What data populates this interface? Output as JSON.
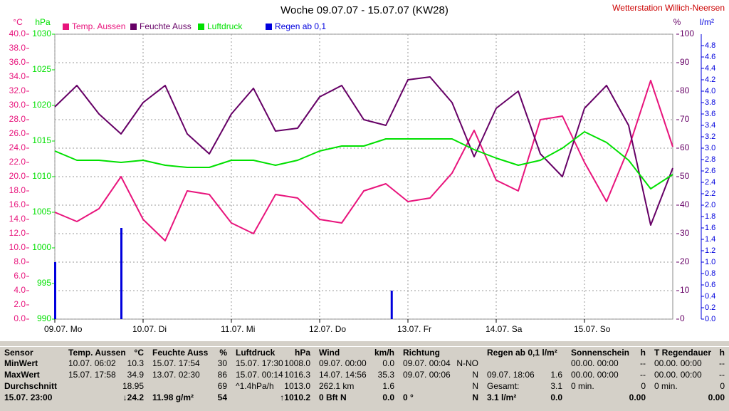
{
  "chart_data": {
    "type": "line",
    "title": "Woche 09.07.07 - 15.07.07 (KW28)",
    "station": "Wetterstation Willich-Neersen",
    "grid": true,
    "axis_labels": {
      "y": "°C",
      "y2": "hPa",
      "y3": "%",
      "y4": "l/m²"
    },
    "xlim": [
      0,
      168
    ],
    "xticks": [
      {
        "value": 0,
        "label": "09.07. Mo"
      },
      {
        "value": 24,
        "label": "10.07. Di"
      },
      {
        "value": 48,
        "label": "11.07. Mi"
      },
      {
        "value": 72,
        "label": "12.07. Do"
      },
      {
        "value": 96,
        "label": "13.07. Fr"
      },
      {
        "value": 120,
        "label": "14.07. Sa"
      },
      {
        "value": 144,
        "label": "15.07. So"
      }
    ],
    "ylim": [
      0,
      40
    ],
    "yticks": [
      {
        "value": 0,
        "label": "0.0"
      },
      {
        "value": 2,
        "label": "2.0"
      },
      {
        "value": 4,
        "label": "4.0"
      },
      {
        "value": 6,
        "label": "6.0"
      },
      {
        "value": 8,
        "label": "8.0"
      },
      {
        "value": 10,
        "label": "10.0"
      },
      {
        "value": 12,
        "label": "12.0"
      },
      {
        "value": 14,
        "label": "14.0"
      },
      {
        "value": 16,
        "label": "16.0"
      },
      {
        "value": 18,
        "label": "18.0"
      },
      {
        "value": 20,
        "label": "20.0"
      },
      {
        "value": 22,
        "label": "22.0"
      },
      {
        "value": 24,
        "label": "24.0"
      },
      {
        "value": 26,
        "label": "26.0"
      },
      {
        "value": 28,
        "label": "28.0"
      },
      {
        "value": 30,
        "label": "30.0"
      },
      {
        "value": 32,
        "label": "32.0"
      },
      {
        "value": 34,
        "label": "34.0"
      },
      {
        "value": 36,
        "label": "36.0"
      },
      {
        "value": 38,
        "label": "38.0"
      },
      {
        "value": 40,
        "label": "40.0"
      }
    ],
    "y2lim": [
      990,
      1030
    ],
    "y2ticks": [
      990,
      995,
      1000,
      1005,
      1010,
      1015,
      1020,
      1025,
      1030
    ],
    "y3lim": [
      0,
      100
    ],
    "y3ticks": [
      0,
      10,
      20,
      30,
      40,
      50,
      60,
      70,
      80,
      90,
      100
    ],
    "y4lim": [
      0,
      5
    ],
    "y4ticks": [
      {
        "value": 0,
        "label": "0.0"
      },
      {
        "value": 0.2,
        "label": "0.2"
      },
      {
        "value": 0.4,
        "label": "0.4"
      },
      {
        "value": 0.6,
        "label": "0.6"
      },
      {
        "value": 0.8,
        "label": "0.8"
      },
      {
        "value": 1,
        "label": "1.0"
      },
      {
        "value": 1.2,
        "label": "1.2"
      },
      {
        "value": 1.4,
        "label": "1.4"
      },
      {
        "value": 1.6,
        "label": "1.6"
      },
      {
        "value": 1.8,
        "label": "1.8"
      },
      {
        "value": 2,
        "label": "2.0"
      },
      {
        "value": 2.2,
        "label": "2.2"
      },
      {
        "value": 2.4,
        "label": "2.4"
      },
      {
        "value": 2.6,
        "label": "2.6"
      },
      {
        "value": 2.8,
        "label": "2.8"
      },
      {
        "value": 3,
        "label": "3.0"
      },
      {
        "value": 3.2,
        "label": "3.2"
      },
      {
        "value": 3.4,
        "label": "3.4"
      },
      {
        "value": 3.6,
        "label": "3.6"
      },
      {
        "value": 3.8,
        "label": "3.8"
      },
      {
        "value": 4,
        "label": "4.0"
      },
      {
        "value": 4.2,
        "label": "4.2"
      },
      {
        "value": 4.4,
        "label": "4.4"
      },
      {
        "value": 4.6,
        "label": "4.6"
      },
      {
        "value": 4.8,
        "label": "4.8"
      }
    ],
    "series": [
      {
        "name": "Temp. Aussen",
        "color": "#e8147c",
        "axis": "y",
        "x": [
          0,
          6,
          12,
          18,
          24,
          30,
          36,
          42,
          48,
          54,
          60,
          66,
          72,
          78,
          84,
          90,
          96,
          102,
          108,
          114,
          120,
          126,
          132,
          138,
          144,
          150,
          156,
          162,
          168
        ],
        "values": [
          15.0,
          13.7,
          15.5,
          20.0,
          14.0,
          11.0,
          18.0,
          17.5,
          13.5,
          12.0,
          17.5,
          17.0,
          14.0,
          13.5,
          18.0,
          19.0,
          16.5,
          17.0,
          20.5,
          26.5,
          19.5,
          18.0,
          28.0,
          28.5,
          22.0,
          16.5,
          24.0,
          33.5,
          24.2
        ]
      },
      {
        "name": "Feuchte Auss",
        "color": "#660066",
        "axis": "y3",
        "x": [
          0,
          6,
          12,
          18,
          24,
          30,
          36,
          42,
          48,
          54,
          60,
          66,
          72,
          78,
          84,
          90,
          96,
          102,
          108,
          114,
          120,
          126,
          132,
          138,
          144,
          150,
          156,
          162,
          168
        ],
        "values": [
          74.5,
          82,
          72,
          65,
          76,
          82,
          65,
          58,
          72,
          81,
          66,
          67,
          78,
          82,
          70,
          68,
          84,
          85,
          76,
          57,
          74,
          80,
          58,
          50,
          74,
          82,
          68,
          33,
          53
        ]
      },
      {
        "name": "Luftdruck",
        "color": "#00e000",
        "axis": "y2",
        "x": [
          0,
          6,
          12,
          18,
          24,
          30,
          36,
          42,
          48,
          54,
          60,
          66,
          72,
          78,
          84,
          90,
          96,
          102,
          108,
          114,
          120,
          126,
          132,
          138,
          144,
          150,
          156,
          162,
          168
        ],
        "values": [
          1013.6,
          1012.3,
          1012.3,
          1012,
          1012.3,
          1011.6,
          1011.3,
          1011.3,
          1012.3,
          1012.3,
          1011.6,
          1012.3,
          1013.6,
          1014.3,
          1014.3,
          1015.3,
          1015.3,
          1015.3,
          1015.3,
          1013.8,
          1012.6,
          1011.6,
          1012.3,
          1014,
          1016.3,
          1014.8,
          1012.3,
          1008.3,
          1010.3
        ]
      },
      {
        "name": "Regen ab 0,1",
        "color": "#0000dd",
        "axis": "y4",
        "type": "bar",
        "x": [
          0,
          18,
          91.5
        ],
        "values": [
          1.0,
          1.6,
          0.5
        ]
      }
    ]
  },
  "table": {
    "rows": [
      [
        {
          "l": "Sensor"
        },
        {
          "l": "Temp. Aussen",
          "r": "°C"
        },
        {
          "l": "Feuchte Auss",
          "r": "%"
        },
        {
          "l": "Luftdruck",
          "r": "hPa"
        },
        {
          "l": "Wind",
          "r": "km/h"
        },
        {
          "l": "Richtung"
        },
        {
          "l": "Regen ab 0,1 l/m²"
        },
        {
          "l": "Sonnenschein",
          "r": "h"
        },
        {
          "l": "T Regendauer",
          "r": "h"
        }
      ],
      [
        {
          "l": "MinWert"
        },
        {
          "l": "10.07.  06:02",
          "r": "10.3"
        },
        {
          "l": "15.07. 17:54",
          "r": "30"
        },
        {
          "l": "15.07. 17:30",
          "r": "1008.0"
        },
        {
          "l": "09.07. 00:00",
          "r": "0.0"
        },
        {
          "l": "09.07. 00:04",
          "r": "N-NO"
        },
        {},
        {
          "l": "00.00. 00:00",
          "r": "--"
        },
        {
          "l": "00.00. 00:00",
          "r": "--"
        }
      ],
      [
        {
          "l": "MaxWert"
        },
        {
          "l": "15.07. 17:58",
          "r": "34.9"
        },
        {
          "l": "13.07. 02:30",
          "r": "86"
        },
        {
          "l": "15.07. 00:14",
          "r": "1016.3"
        },
        {
          "l": "14.07. 14:56",
          "r": "35.3"
        },
        {
          "l": "09.07. 00:06",
          "r": "N"
        },
        {
          "l": "09.07. 18:06",
          "r": "1.6"
        },
        {
          "l": "00.00. 00:00",
          "r": "--"
        },
        {
          "l": "00.00. 00:00",
          "r": "--"
        }
      ],
      [
        {
          "l": "Durchschnitt"
        },
        {
          "r": "18.95"
        },
        {
          "r": "69"
        },
        {
          "l": "^1.4hPa/h",
          "r": "1013.0"
        },
        {
          "l": "262.1 km",
          "r": "1.6"
        },
        {
          "r": "N"
        },
        {
          "l": "Gesamt:",
          "r": "3.1"
        },
        {
          "l": "0 min.",
          "r": "0"
        },
        {
          "l": "0 min.",
          "r": "0"
        }
      ],
      [
        {
          "l": "15.07. 23:00"
        },
        {
          "r": "↓24.2"
        },
        {
          "l": "11.98 g/m²",
          "r": "54"
        },
        {
          "r": "↑1010.2"
        },
        {
          "l": "0 Bft N",
          "r": "0.0"
        },
        {
          "l": "0 °",
          "r": "N"
        },
        {
          "l": "3.1 l/m²",
          "r": "0.0"
        },
        {
          "r": "0.00"
        },
        {
          "r": "0.00"
        }
      ]
    ]
  }
}
